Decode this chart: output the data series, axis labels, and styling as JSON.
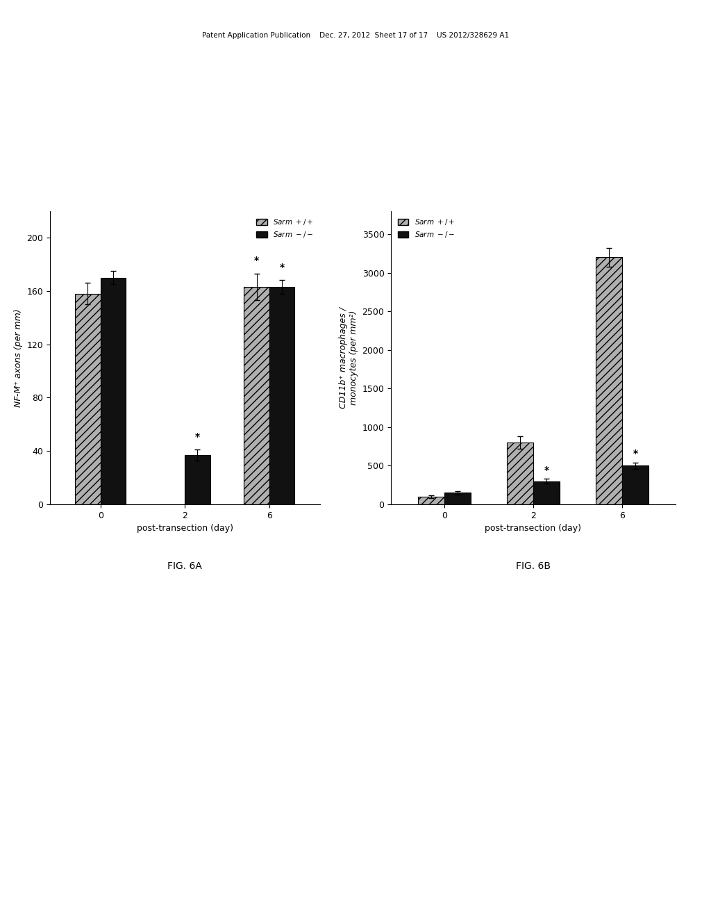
{
  "fig6a": {
    "title": "FIG. 6A",
    "ylabel": "NF-M⁺ axons (per mm)",
    "xlabel": "post-transection (day)",
    "days": [
      0,
      2,
      6
    ],
    "sarm_pp_values": [
      158,
      0,
      163
    ],
    "sarm_pp_errors": [
      8,
      0,
      10
    ],
    "sarm_km_values": [
      170,
      37,
      163
    ],
    "sarm_km_errors": [
      5,
      4,
      5
    ],
    "ylim": [
      0,
      220
    ],
    "yticks": [
      0,
      40,
      80,
      120,
      160,
      200
    ],
    "significance_days": [
      2,
      6
    ],
    "legend_sarm_pp": "Sarm +/+",
    "legend_sarm_km": "Sarm -/-"
  },
  "fig6b": {
    "title": "FIG. 6B",
    "ylabel": "CD11b⁺ macrophages /\nmonocytes (per mm²)",
    "xlabel": "post-transection (day)",
    "days": [
      0,
      2,
      6
    ],
    "sarm_pp_values": [
      100,
      800,
      3200
    ],
    "sarm_pp_errors": [
      20,
      80,
      120
    ],
    "sarm_km_values": [
      150,
      300,
      500
    ],
    "sarm_km_errors": [
      20,
      30,
      40
    ],
    "ylim": [
      0,
      3800
    ],
    "yticks": [
      0,
      500,
      1000,
      1500,
      2000,
      2500,
      3000,
      3500
    ],
    "significance_days": [
      2,
      6
    ],
    "legend_sarm_pp": "Sarm +/+",
    "legend_sarm_km": "Sarm -/-"
  },
  "header_text": "Patent Application Publication    Dec. 27, 2012  Sheet 17 of 17    US 2012/328629 A1",
  "bar_width": 0.3,
  "sarm_pp_color": "#b0b0b0",
  "sarm_pp_hatch": "///",
  "sarm_km_color": "#111111",
  "sarm_km_hatch": "",
  "bg_color": "#ffffff",
  "font_size": 9,
  "title_font_size": 10,
  "label_font_size": 8
}
